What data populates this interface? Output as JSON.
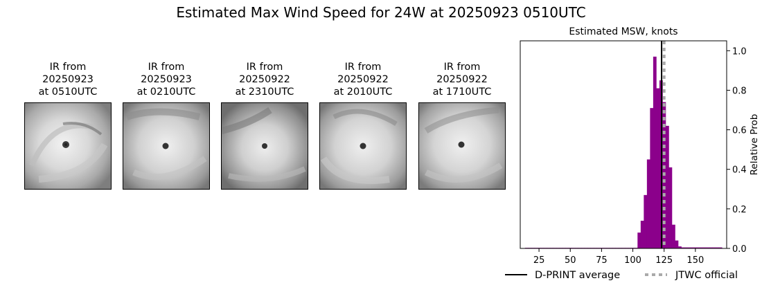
{
  "title": "Estimated Max Wind Speed for 24W at 20250923 0510UTC",
  "panels": [
    {
      "line1": "IR from",
      "line2": "20250923",
      "line3": "at 0510UTC"
    },
    {
      "line1": "IR from",
      "line2": "20250923",
      "line3": "at 0210UTC"
    },
    {
      "line1": "IR from",
      "line2": "20250922",
      "line3": "at 2310UTC"
    },
    {
      "line1": "IR from",
      "line2": "20250922",
      "line3": "at 2010UTC"
    },
    {
      "line1": "IR from",
      "line2": "20250922",
      "line3": "at 1710UTC"
    }
  ],
  "chart_data": {
    "type": "bar",
    "title": "Estimated MSW, knots",
    "xlabel": "",
    "ylabel": "Relative Prob",
    "xlim": [
      10,
      175
    ],
    "ylim": [
      0,
      1.05
    ],
    "xticks": [
      25,
      50,
      75,
      100,
      125,
      150
    ],
    "yticks": [
      0.0,
      0.2,
      0.4,
      0.6,
      0.8,
      1.0
    ],
    "bar_width": 2.5,
    "bar_color": "#8b008b",
    "x": [
      15,
      17.5,
      20,
      22.5,
      25,
      27.5,
      30,
      32.5,
      35,
      37.5,
      40,
      42.5,
      45,
      47.5,
      50,
      52.5,
      55,
      57.5,
      60,
      62.5,
      65,
      67.5,
      70,
      72.5,
      75,
      77.5,
      80,
      82.5,
      85,
      87.5,
      90,
      92.5,
      95,
      97.5,
      100,
      102.5,
      105,
      107.5,
      110,
      112.5,
      115,
      117.5,
      120,
      122.5,
      125,
      127.5,
      130,
      132.5,
      135,
      137.5,
      140,
      142.5,
      145,
      147.5,
      150,
      152.5,
      155,
      157.5,
      160,
      162.5,
      165,
      167.5,
      170
    ],
    "values": [
      0.003,
      0.003,
      0.003,
      0.003,
      0.003,
      0.003,
      0.003,
      0.003,
      0.003,
      0.003,
      0.003,
      0.003,
      0.003,
      0.003,
      0.003,
      0.003,
      0.003,
      0.003,
      0.003,
      0.003,
      0.003,
      0.003,
      0.003,
      0.003,
      0.003,
      0.003,
      0.003,
      0.003,
      0.003,
      0.003,
      0.003,
      0.003,
      0.003,
      0.003,
      0.003,
      0.003,
      0.08,
      0.14,
      0.27,
      0.45,
      0.71,
      0.97,
      0.81,
      0.85,
      0.74,
      0.62,
      0.41,
      0.12,
      0.04,
      0.01,
      0.005,
      0.005,
      0.005,
      0.005,
      0.005,
      0.005,
      0.005,
      0.005,
      0.005,
      0.005,
      0.005,
      0.005,
      0.005
    ],
    "dprint_average": 123,
    "jtwc_official": 125,
    "legend": [
      {
        "label": "D-PRINT average",
        "color": "#000000",
        "style": "solid"
      },
      {
        "label": "JTWC official",
        "color": "#aaaaaa",
        "style": "dashed"
      }
    ],
    "legend_position": "bottom"
  }
}
